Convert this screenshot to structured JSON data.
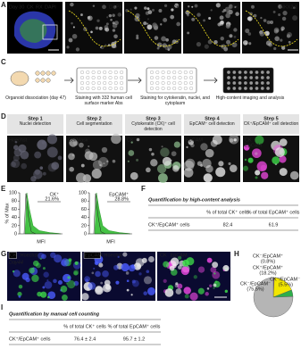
{
  "panels": {
    "a": {
      "letter": "A",
      "overlay": [
        "Day 30",
        "CK",
        "RX",
        "DAPI"
      ],
      "images": [
        "DAPI",
        "CK",
        "RX",
        "NKX2.1"
      ]
    },
    "c": {
      "letter": "C",
      "steps": [
        "Organoid dissociation (day 47)",
        "Staining with 332 human cell surface marker Abs",
        "Staining for cytokeratin, nuclei, and cytoplasm",
        "High-content imaging and analysis"
      ]
    },
    "d": {
      "letter": "D",
      "steps": [
        {
          "step": "Step 1",
          "task": "Nuclei detection",
          "stains": [
            "Hoechst"
          ]
        },
        {
          "step": "Step 2",
          "task": "Cell segmentation",
          "stains": [
            "CellMask"
          ]
        },
        {
          "step": "Step 3",
          "task": "Cytokeratin (CK)⁺ cell detection",
          "stains": [
            "CK"
          ]
        },
        {
          "step": "Step 4",
          "task": "EpCAM⁺ cell detection",
          "stains": [
            "EpCAM"
          ]
        },
        {
          "step": "Step 5",
          "task": "CK⁺/EpCAM⁺ cell detection",
          "stains": [
            "CK",
            "EpCAM"
          ]
        }
      ]
    },
    "e": {
      "letter": "E",
      "y_label": "% of Max",
      "x_label": "MFI",
      "ylim": [
        0,
        100
      ],
      "yticks": [
        0,
        20,
        40,
        60,
        80,
        100
      ],
      "histograms": [
        {
          "marker": "CK⁺",
          "percent": "21.6%"
        },
        {
          "marker": "EpCAM⁺",
          "percent": "28.8%"
        }
      ]
    },
    "f": {
      "letter": "F",
      "title": "Quantification by high-content analysis",
      "columns": [
        "% of total CK⁺ cells",
        "% of total EpCAM⁺ cells"
      ],
      "rows": [
        [
          "CK⁺/EpCAM⁺ cells",
          82.4,
          61.9
        ]
      ]
    },
    "g": {
      "letter": "G",
      "day": "Day44",
      "images": [
        [
          "CK",
          "Hoechst"
        ],
        [
          "EpCAM",
          "Hoechst"
        ],
        [
          "CK",
          "EpCAM"
        ]
      ]
    },
    "h": {
      "letter": "H",
      "slices": [
        {
          "name": "CK⁻/EpCAM⁺",
          "value": 0.8,
          "value_label": "(0.8%)",
          "color": "#b04fc0"
        },
        {
          "name": "CK⁺/EpCAM⁺",
          "value": 18.2,
          "value_label": "(18.2%)",
          "color": "#f2e600"
        },
        {
          "name": "CK⁺/EpCAM⁻",
          "value": 5.5,
          "value_label": "(5.5%)",
          "color": "#2eae4a"
        },
        {
          "name": "CK⁻/EpCAM⁻",
          "value": 75.5,
          "value_label": "(75.5%)",
          "color": "#b5b5b5"
        }
      ]
    },
    "i": {
      "letter": "I",
      "title": "Quantification by manual cell counting",
      "columns": [
        "% of total CK⁺ cells",
        "% of total EpCAM⁺ cells"
      ],
      "rows": [
        [
          "CK⁺/EpCAM⁺ cells",
          "76.4 ± 2.4",
          "95.7 ± 1.2"
        ]
      ]
    }
  }
}
